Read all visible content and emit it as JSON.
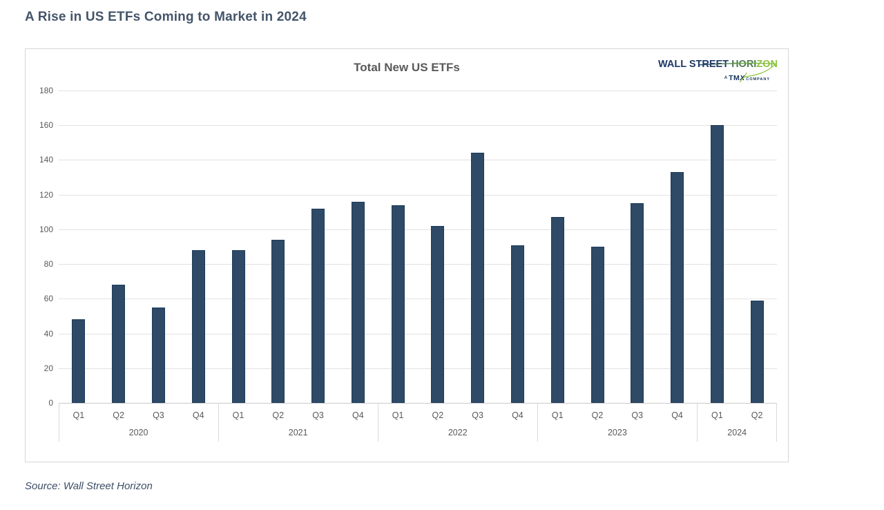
{
  "page": {
    "title": "A Rise in US ETFs Coming to Market in 2024",
    "source_note": "Source: Wall Street Horizon"
  },
  "logo": {
    "wordmark": "WALL STREET HORIZON",
    "wordmark_parts": [
      {
        "text": "WALL STREET "
      },
      {
        "text": "HORI"
      },
      {
        "text": "ZON"
      }
    ],
    "subbrand_prefix": "A",
    "subbrand_tm": "TM",
    "subbrand_x": "X",
    "subbrand_suffix": "COMPANY",
    "navy": "#16325c",
    "green": "#8dc63f"
  },
  "chart_data": {
    "type": "bar",
    "title": "Total New US ETFs",
    "xlabel": "",
    "ylabel": "",
    "ylim": [
      0,
      180
    ],
    "ytick_step": 20,
    "grid": true,
    "legend": false,
    "bar_color": "#2e4a66",
    "bar_border_color": "#1c3a5a",
    "groups": [
      {
        "year": "2020",
        "categories": [
          "Q1",
          "Q2",
          "Q3",
          "Q4"
        ],
        "values": [
          48,
          68,
          55,
          88
        ]
      },
      {
        "year": "2021",
        "categories": [
          "Q1",
          "Q2",
          "Q3",
          "Q4"
        ],
        "values": [
          88,
          94,
          112,
          116
        ]
      },
      {
        "year": "2022",
        "categories": [
          "Q1",
          "Q2",
          "Q3",
          "Q4"
        ],
        "values": [
          114,
          102,
          144,
          91
        ]
      },
      {
        "year": "2023",
        "categories": [
          "Q1",
          "Q2",
          "Q3",
          "Q4"
        ],
        "values": [
          107,
          90,
          115,
          133
        ]
      },
      {
        "year": "2024",
        "categories": [
          "Q1",
          "Q2"
        ],
        "values": [
          160,
          59
        ]
      }
    ]
  }
}
